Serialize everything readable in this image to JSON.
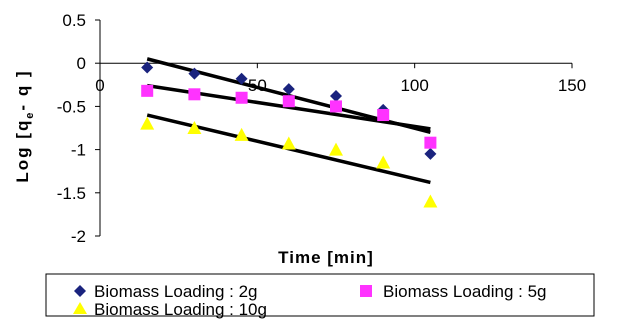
{
  "chart_data": {
    "type": "scatter",
    "xlabel": "Time [min]",
    "ylabel": "Log [qe - q]",
    "ylabel_main": "Log [q",
    "ylabel_sub": "e",
    "ylabel_tail": "- q ]",
    "xlim": [
      0,
      150
    ],
    "ylim": [
      -2,
      0.5
    ],
    "x_ticks": [
      0,
      50,
      100,
      150
    ],
    "y_ticks": [
      0.5,
      0,
      -0.5,
      -1,
      -1.5,
      -2
    ],
    "x_tick_labels": [
      "0",
      "50",
      "100",
      "150"
    ],
    "y_tick_labels": [
      "0.5",
      "0",
      "-0.5",
      "-1",
      "-1.5",
      "-2"
    ],
    "grid": false,
    "legend_position": "bottom",
    "series": [
      {
        "name": "Biomass Loading : 2g",
        "marker": "diamond",
        "color": "#1a237e",
        "x": [
          15,
          30,
          45,
          60,
          75,
          90,
          105
        ],
        "y": [
          -0.05,
          -0.12,
          -0.18,
          -0.3,
          -0.38,
          -0.54,
          -1.05
        ],
        "trendline": {
          "x": [
            15,
            105
          ],
          "y": [
            0.05,
            -0.8
          ]
        }
      },
      {
        "name": "Biomass Loading : 5g",
        "marker": "square",
        "color": "#ff33ff",
        "x": [
          15,
          30,
          45,
          60,
          75,
          90,
          105
        ],
        "y": [
          -0.32,
          -0.36,
          -0.4,
          -0.44,
          -0.5,
          -0.6,
          -0.92
        ],
        "trendline": {
          "x": [
            15,
            105
          ],
          "y": [
            -0.26,
            -0.76
          ]
        }
      },
      {
        "name": "Biomass Loading : 10g",
        "marker": "triangle",
        "color": "#ffff00",
        "x": [
          15,
          30,
          45,
          60,
          75,
          90,
          105
        ],
        "y": [
          -0.7,
          -0.75,
          -0.83,
          -0.93,
          -1.0,
          -1.15,
          -1.6
        ],
        "trendline": {
          "x": [
            15,
            105
          ],
          "y": [
            -0.6,
            -1.38
          ]
        }
      }
    ]
  }
}
